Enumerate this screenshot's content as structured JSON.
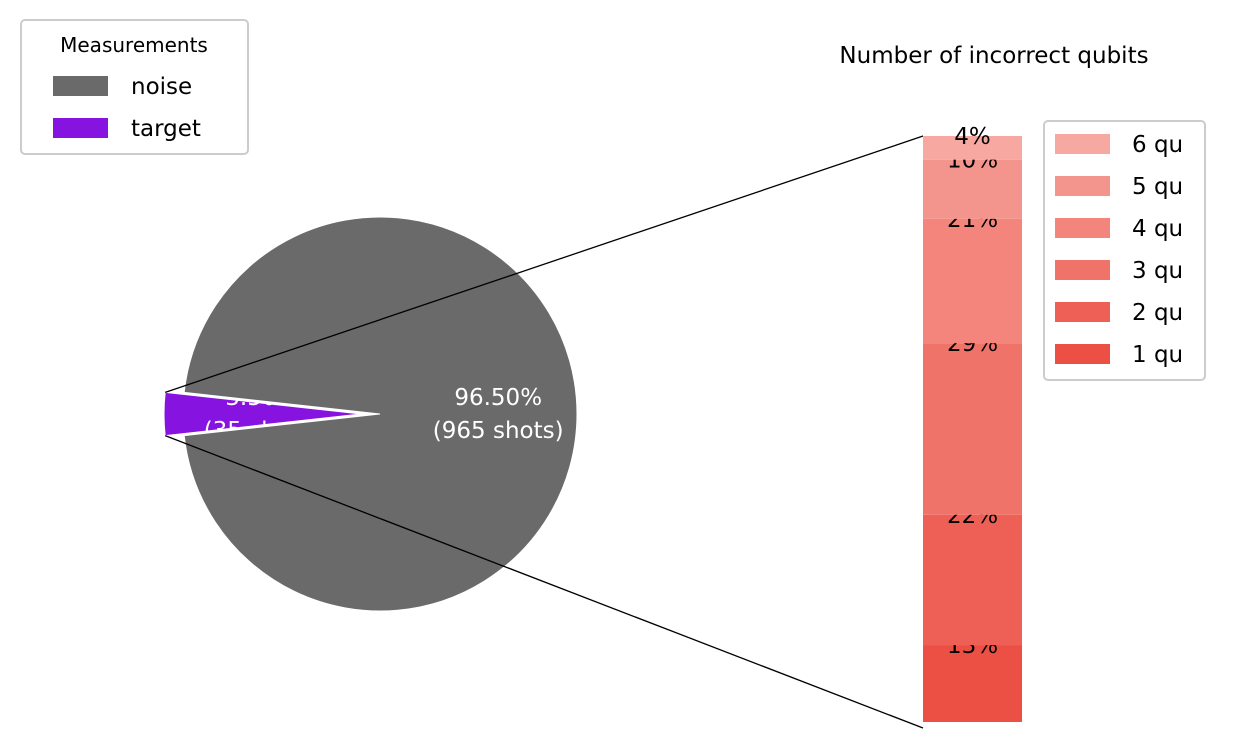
{
  "chart_data": [
    {
      "type": "pie",
      "legend_title": "Measurements",
      "legend_position": "top-left",
      "slices": [
        {
          "label": "noise",
          "value": 96.5,
          "pct_label": "96.50%",
          "shots_label": "(965 shots)",
          "color": "#6a6a6a"
        },
        {
          "label": "target",
          "value": 3.5,
          "pct_label": "3.50%",
          "shots_label": "(35 shots)",
          "color": "#8713e0",
          "exploded": true
        }
      ]
    },
    {
      "type": "bar",
      "stacked": true,
      "title": "Number of incorrect qubits",
      "legend_position": "right",
      "segments": [
        {
          "label": "1 qu",
          "value": 13,
          "pct_label": "13%",
          "color": "#ec4f44"
        },
        {
          "label": "2 qu",
          "value": 22,
          "pct_label": "22%",
          "color": "#ee5f55"
        },
        {
          "label": "3 qu",
          "value": 29,
          "pct_label": "29%",
          "color": "#f07369"
        },
        {
          "label": "4 qu",
          "value": 21,
          "pct_label": "21%",
          "color": "#f3857c"
        },
        {
          "label": "5 qu",
          "value": 10,
          "pct_label": "10%",
          "color": "#f4958d"
        },
        {
          "label": "6 qu",
          "value": 4,
          "pct_label": "4%",
          "color": "#f6a8a1"
        }
      ]
    }
  ]
}
